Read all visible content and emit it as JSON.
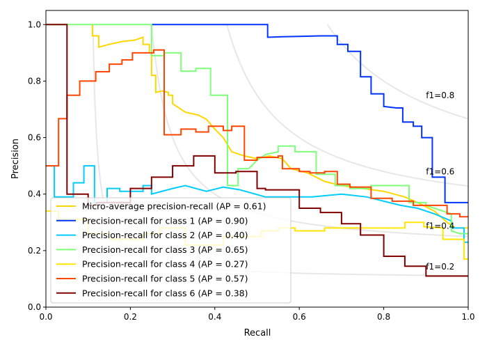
{
  "chart_data": {
    "type": "line",
    "title": "",
    "xlabel": "Recall",
    "ylabel": "Precision",
    "xlim": [
      0.0,
      1.0
    ],
    "ylim": [
      0.0,
      1.05
    ],
    "xticks": [
      "0.0",
      "0.2",
      "0.4",
      "0.6",
      "0.8",
      "1.0"
    ],
    "yticks": [
      "0.0",
      "0.2",
      "0.4",
      "0.6",
      "0.8",
      "1.0"
    ],
    "legend_position": "lower-left",
    "iso_f1": [
      {
        "f1": 0.2,
        "label": "f1=0.2"
      },
      {
        "f1": 0.4,
        "label": "f1=0.4"
      },
      {
        "f1": 0.6,
        "label": "f1=0.6"
      },
      {
        "f1": 0.8,
        "label": "f1=0.8"
      }
    ],
    "series": [
      {
        "name": "Micro-average precision-recall (AP = 0.61)",
        "color": "#ffd700",
        "points": [
          [
            0.11,
            1.0
          ],
          [
            0.11,
            0.96
          ],
          [
            0.125,
            0.96
          ],
          [
            0.125,
            0.92
          ],
          [
            0.15,
            0.93
          ],
          [
            0.18,
            0.94
          ],
          [
            0.21,
            0.945
          ],
          [
            0.23,
            0.955
          ],
          [
            0.23,
            0.93
          ],
          [
            0.245,
            0.93
          ],
          [
            0.245,
            0.9
          ],
          [
            0.25,
            0.9
          ],
          [
            0.25,
            0.82
          ],
          [
            0.26,
            0.82
          ],
          [
            0.26,
            0.76
          ],
          [
            0.275,
            0.765
          ],
          [
            0.29,
            0.76
          ],
          [
            0.29,
            0.75
          ],
          [
            0.3,
            0.75
          ],
          [
            0.3,
            0.72
          ],
          [
            0.31,
            0.71
          ],
          [
            0.33,
            0.69
          ],
          [
            0.36,
            0.68
          ],
          [
            0.38,
            0.665
          ],
          [
            0.4,
            0.63
          ],
          [
            0.42,
            0.6
          ],
          [
            0.44,
            0.55
          ],
          [
            0.47,
            0.535
          ],
          [
            0.5,
            0.525
          ],
          [
            0.53,
            0.535
          ],
          [
            0.56,
            0.525
          ],
          [
            0.58,
            0.49
          ],
          [
            0.62,
            0.475
          ],
          [
            0.66,
            0.445
          ],
          [
            0.7,
            0.43
          ],
          [
            0.75,
            0.42
          ],
          [
            0.8,
            0.41
          ],
          [
            0.85,
            0.39
          ],
          [
            0.88,
            0.37
          ],
          [
            0.92,
            0.34
          ],
          [
            0.95,
            0.3
          ],
          [
            0.97,
            0.28
          ],
          [
            1.0,
            0.28
          ]
        ]
      },
      {
        "name": "Precision-recall for class 1 (AP = 0.90)",
        "color": "#0033ff",
        "points": [
          [
            0.25,
            1.0
          ],
          [
            0.525,
            1.0
          ],
          [
            0.525,
            0.955
          ],
          [
            0.56,
            0.957
          ],
          [
            0.6,
            0.958
          ],
          [
            0.65,
            0.96
          ],
          [
            0.69,
            0.96
          ],
          [
            0.69,
            0.93
          ],
          [
            0.715,
            0.93
          ],
          [
            0.715,
            0.905
          ],
          [
            0.745,
            0.905
          ],
          [
            0.745,
            0.815
          ],
          [
            0.77,
            0.815
          ],
          [
            0.77,
            0.755
          ],
          [
            0.8,
            0.755
          ],
          [
            0.8,
            0.71
          ],
          [
            0.83,
            0.705
          ],
          [
            0.845,
            0.705
          ],
          [
            0.845,
            0.655
          ],
          [
            0.87,
            0.655
          ],
          [
            0.87,
            0.64
          ],
          [
            0.89,
            0.64
          ],
          [
            0.89,
            0.6
          ],
          [
            0.915,
            0.6
          ],
          [
            0.915,
            0.46
          ],
          [
            0.945,
            0.46
          ],
          [
            0.945,
            0.37
          ],
          [
            1.0,
            0.37
          ]
        ]
      },
      {
        "name": "Precision-recall for class 2 (AP = 0.40)",
        "color": "#00ccff",
        "points": [
          [
            0.0,
            0.5
          ],
          [
            0.02,
            0.5
          ],
          [
            0.02,
            0.39
          ],
          [
            0.065,
            0.39
          ],
          [
            0.065,
            0.44
          ],
          [
            0.09,
            0.44
          ],
          [
            0.09,
            0.5
          ],
          [
            0.115,
            0.5
          ],
          [
            0.115,
            0.37
          ],
          [
            0.145,
            0.37
          ],
          [
            0.145,
            0.42
          ],
          [
            0.175,
            0.42
          ],
          [
            0.175,
            0.41
          ],
          [
            0.23,
            0.41
          ],
          [
            0.23,
            0.43
          ],
          [
            0.25,
            0.43
          ],
          [
            0.25,
            0.4
          ],
          [
            0.3,
            0.42
          ],
          [
            0.33,
            0.43
          ],
          [
            0.38,
            0.41
          ],
          [
            0.42,
            0.425
          ],
          [
            0.46,
            0.415
          ],
          [
            0.52,
            0.39
          ],
          [
            0.58,
            0.39
          ],
          [
            0.63,
            0.39
          ],
          [
            0.7,
            0.4
          ],
          [
            0.76,
            0.39
          ],
          [
            0.8,
            0.375
          ],
          [
            0.84,
            0.36
          ],
          [
            0.88,
            0.35
          ],
          [
            0.92,
            0.33
          ],
          [
            0.96,
            0.305
          ],
          [
            0.96,
            0.28
          ],
          [
            0.99,
            0.28
          ],
          [
            0.99,
            0.23
          ],
          [
            1.0,
            0.23
          ]
        ]
      },
      {
        "name": "Precision-recall for class 3 (AP = 0.65)",
        "color": "#7dff7a",
        "points": [
          [
            0.0,
            1.0
          ],
          [
            0.25,
            1.0
          ],
          [
            0.25,
            0.89
          ],
          [
            0.28,
            0.89
          ],
          [
            0.28,
            0.9
          ],
          [
            0.32,
            0.9
          ],
          [
            0.32,
            0.835
          ],
          [
            0.355,
            0.835
          ],
          [
            0.355,
            0.845
          ],
          [
            0.39,
            0.845
          ],
          [
            0.39,
            0.75
          ],
          [
            0.43,
            0.75
          ],
          [
            0.43,
            0.43
          ],
          [
            0.455,
            0.43
          ],
          [
            0.455,
            0.49
          ],
          [
            0.48,
            0.49
          ],
          [
            0.5,
            0.52
          ],
          [
            0.52,
            0.54
          ],
          [
            0.55,
            0.55
          ],
          [
            0.55,
            0.57
          ],
          [
            0.59,
            0.57
          ],
          [
            0.59,
            0.55
          ],
          [
            0.64,
            0.55
          ],
          [
            0.64,
            0.47
          ],
          [
            0.685,
            0.47
          ],
          [
            0.685,
            0.43
          ],
          [
            0.72,
            0.43
          ],
          [
            0.72,
            0.42
          ],
          [
            0.77,
            0.42
          ],
          [
            0.77,
            0.43
          ],
          [
            0.82,
            0.43
          ],
          [
            0.86,
            0.43
          ],
          [
            0.86,
            0.37
          ],
          [
            0.9,
            0.37
          ],
          [
            0.9,
            0.36
          ],
          [
            0.94,
            0.34
          ],
          [
            0.96,
            0.33
          ],
          [
            0.96,
            0.27
          ],
          [
            0.98,
            0.26
          ],
          [
            1.0,
            0.26
          ]
        ]
      },
      {
        "name": "Precision-recall for class 4 (AP = 0.27)",
        "color": "#ffe600",
        "points": [
          [
            0.0,
            0.34
          ],
          [
            0.03,
            0.34
          ],
          [
            0.03,
            0.31
          ],
          [
            0.1,
            0.31
          ],
          [
            0.1,
            0.26
          ],
          [
            0.15,
            0.26
          ],
          [
            0.15,
            0.24
          ],
          [
            0.23,
            0.24
          ],
          [
            0.23,
            0.26
          ],
          [
            0.27,
            0.26
          ],
          [
            0.27,
            0.28
          ],
          [
            0.33,
            0.28
          ],
          [
            0.33,
            0.22
          ],
          [
            0.42,
            0.22
          ],
          [
            0.42,
            0.25
          ],
          [
            0.51,
            0.25
          ],
          [
            0.51,
            0.27
          ],
          [
            0.55,
            0.27
          ],
          [
            0.55,
            0.28
          ],
          [
            0.59,
            0.28
          ],
          [
            0.59,
            0.27
          ],
          [
            0.66,
            0.27
          ],
          [
            0.66,
            0.28
          ],
          [
            0.7,
            0.28
          ],
          [
            0.85,
            0.28
          ],
          [
            0.85,
            0.3
          ],
          [
            0.895,
            0.3
          ],
          [
            0.895,
            0.285
          ],
          [
            0.94,
            0.28
          ],
          [
            0.94,
            0.24
          ],
          [
            0.94,
            0.24
          ],
          [
            0.98,
            0.24
          ],
          [
            0.98,
            0.24
          ],
          [
            0.99,
            0.24
          ],
          [
            0.99,
            0.17
          ],
          [
            1.0,
            0.17
          ]
        ]
      },
      {
        "name": "Precision-recall for class 5 (AP = 0.57)",
        "color": "#ff4500",
        "points": [
          [
            0.0,
            0.5
          ],
          [
            0.03,
            0.5
          ],
          [
            0.03,
            0.667
          ],
          [
            0.05,
            0.667
          ],
          [
            0.05,
            0.75
          ],
          [
            0.08,
            0.75
          ],
          [
            0.08,
            0.8
          ],
          [
            0.118,
            0.8
          ],
          [
            0.118,
            0.833
          ],
          [
            0.15,
            0.833
          ],
          [
            0.15,
            0.86
          ],
          [
            0.18,
            0.86
          ],
          [
            0.18,
            0.875
          ],
          [
            0.205,
            0.875
          ],
          [
            0.205,
            0.9
          ],
          [
            0.255,
            0.9
          ],
          [
            0.255,
            0.91
          ],
          [
            0.28,
            0.91
          ],
          [
            0.28,
            0.61
          ],
          [
            0.32,
            0.61
          ],
          [
            0.32,
            0.63
          ],
          [
            0.355,
            0.63
          ],
          [
            0.355,
            0.62
          ],
          [
            0.385,
            0.62
          ],
          [
            0.385,
            0.64
          ],
          [
            0.42,
            0.64
          ],
          [
            0.42,
            0.625
          ],
          [
            0.44,
            0.625
          ],
          [
            0.44,
            0.64
          ],
          [
            0.47,
            0.64
          ],
          [
            0.47,
            0.52
          ],
          [
            0.5,
            0.52
          ],
          [
            0.5,
            0.53
          ],
          [
            0.55,
            0.53
          ],
          [
            0.55,
            0.535
          ],
          [
            0.56,
            0.535
          ],
          [
            0.56,
            0.49
          ],
          [
            0.6,
            0.49
          ],
          [
            0.6,
            0.48
          ],
          [
            0.625,
            0.48
          ],
          [
            0.625,
            0.475
          ],
          [
            0.66,
            0.475
          ],
          [
            0.66,
            0.48
          ],
          [
            0.69,
            0.48
          ],
          [
            0.69,
            0.435
          ],
          [
            0.72,
            0.435
          ],
          [
            0.72,
            0.425
          ],
          [
            0.77,
            0.425
          ],
          [
            0.77,
            0.385
          ],
          [
            0.82,
            0.385
          ],
          [
            0.82,
            0.375
          ],
          [
            0.87,
            0.375
          ],
          [
            0.87,
            0.36
          ],
          [
            0.95,
            0.36
          ],
          [
            0.95,
            0.33
          ],
          [
            0.98,
            0.33
          ],
          [
            0.98,
            0.32
          ],
          [
            1.0,
            0.32
          ]
        ]
      },
      {
        "name": "Precision-recall for class 6 (AP = 0.38)",
        "color": "#800000",
        "points": [
          [
            0.0,
            1.0
          ],
          [
            0.05,
            1.0
          ],
          [
            0.05,
            0.4
          ],
          [
            0.1,
            0.4
          ],
          [
            0.1,
            0.36
          ],
          [
            0.12,
            0.36
          ],
          [
            0.12,
            0.37
          ],
          [
            0.2,
            0.37
          ],
          [
            0.2,
            0.42
          ],
          [
            0.25,
            0.42
          ],
          [
            0.25,
            0.46
          ],
          [
            0.3,
            0.46
          ],
          [
            0.3,
            0.5
          ],
          [
            0.35,
            0.5
          ],
          [
            0.35,
            0.535
          ],
          [
            0.4,
            0.535
          ],
          [
            0.4,
            0.475
          ],
          [
            0.45,
            0.475
          ],
          [
            0.45,
            0.48
          ],
          [
            0.5,
            0.48
          ],
          [
            0.5,
            0.42
          ],
          [
            0.52,
            0.42
          ],
          [
            0.52,
            0.415
          ],
          [
            0.6,
            0.415
          ],
          [
            0.6,
            0.35
          ],
          [
            0.65,
            0.35
          ],
          [
            0.65,
            0.335
          ],
          [
            0.7,
            0.335
          ],
          [
            0.7,
            0.295
          ],
          [
            0.745,
            0.295
          ],
          [
            0.745,
            0.255
          ],
          [
            0.8,
            0.255
          ],
          [
            0.8,
            0.18
          ],
          [
            0.85,
            0.18
          ],
          [
            0.85,
            0.145
          ],
          [
            0.9,
            0.145
          ],
          [
            0.9,
            0.11
          ],
          [
            1.0,
            0.11
          ]
        ]
      }
    ]
  }
}
